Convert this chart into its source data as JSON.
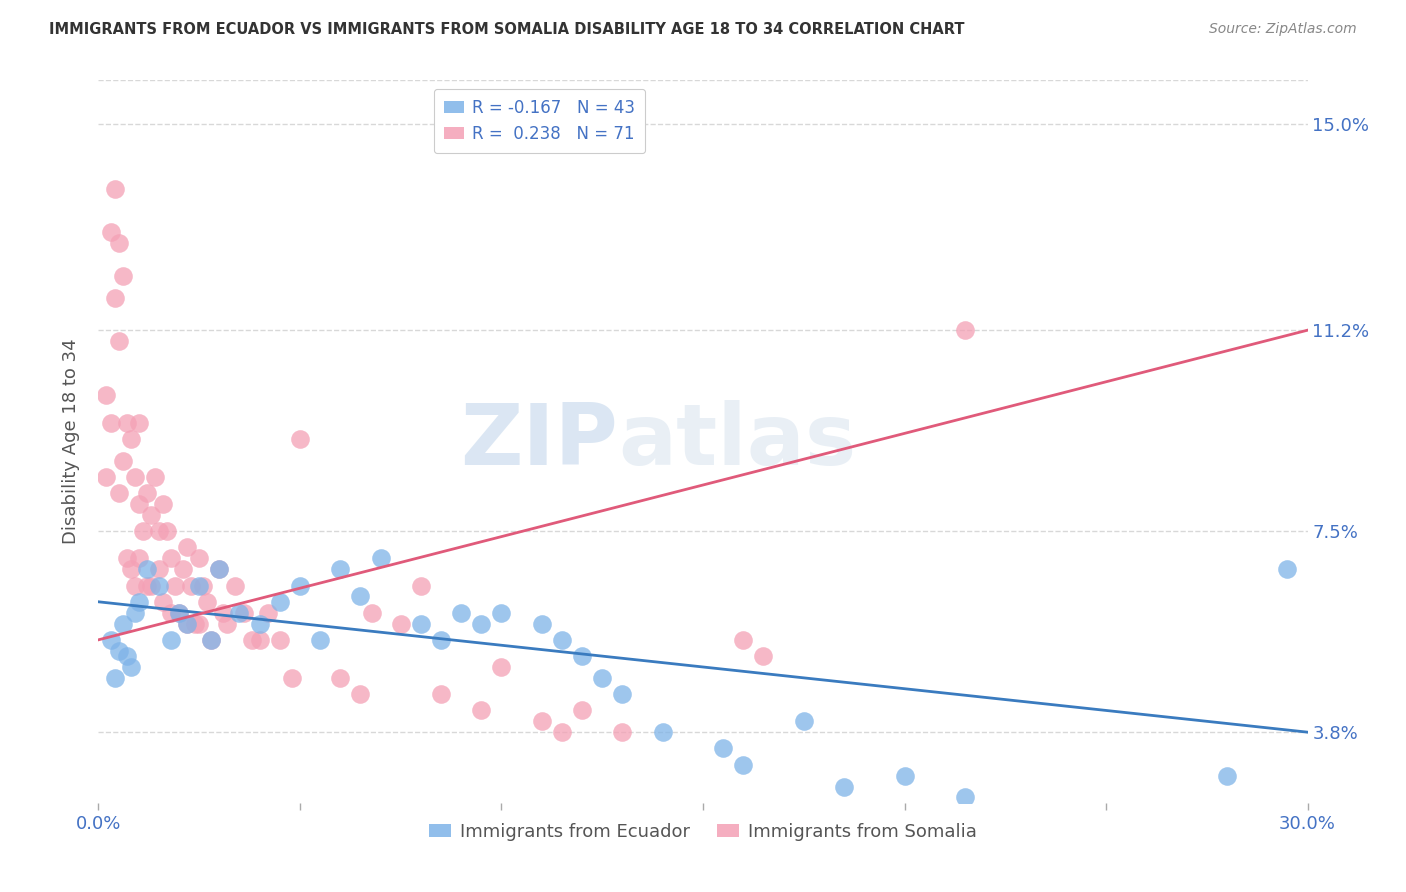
{
  "title": "IMMIGRANTS FROM ECUADOR VS IMMIGRANTS FROM SOMALIA DISABILITY AGE 18 TO 34 CORRELATION CHART",
  "source": "Source: ZipAtlas.com",
  "ylabel": "Disability Age 18 to 34",
  "xlim": [
    0.0,
    0.3
  ],
  "ylim": [
    0.025,
    0.158
  ],
  "xticks": [
    0.0,
    0.05,
    0.1,
    0.15,
    0.2,
    0.25,
    0.3
  ],
  "grid_color": "#d8d8d8",
  "ecuador_color": "#7eb3e8",
  "somalia_color": "#f4a0b5",
  "ecuador_line_color": "#3a7bbf",
  "somalia_line_color": "#e05a7a",
  "ytick_labels_right": [
    "15.0%",
    "11.2%",
    "7.5%",
    "3.8%"
  ],
  "ytick_vals_right": [
    0.15,
    0.112,
    0.075,
    0.038
  ],
  "ecuador_label": "Immigrants from Ecuador",
  "somalia_label": "Immigrants from Somalia",
  "legend_ecuador_label": "R = -0.167   N = 43",
  "legend_somalia_label": "R =  0.238   N = 71",
  "watermark_zip": "ZIP",
  "watermark_atlas": "atlas",
  "ecuador_points_x": [
    0.003,
    0.004,
    0.005,
    0.006,
    0.007,
    0.008,
    0.009,
    0.01,
    0.012,
    0.015,
    0.018,
    0.02,
    0.022,
    0.025,
    0.028,
    0.03,
    0.035,
    0.04,
    0.045,
    0.05,
    0.055,
    0.06,
    0.065,
    0.07,
    0.08,
    0.085,
    0.09,
    0.095,
    0.1,
    0.11,
    0.115,
    0.12,
    0.125,
    0.13,
    0.14,
    0.155,
    0.16,
    0.175,
    0.185,
    0.2,
    0.215,
    0.28,
    0.295
  ],
  "ecuador_points_y": [
    0.055,
    0.048,
    0.053,
    0.058,
    0.052,
    0.05,
    0.06,
    0.062,
    0.068,
    0.065,
    0.055,
    0.06,
    0.058,
    0.065,
    0.055,
    0.068,
    0.06,
    0.058,
    0.062,
    0.065,
    0.055,
    0.068,
    0.063,
    0.07,
    0.058,
    0.055,
    0.06,
    0.058,
    0.06,
    0.058,
    0.055,
    0.052,
    0.048,
    0.045,
    0.038,
    0.035,
    0.032,
    0.04,
    0.028,
    0.03,
    0.026,
    0.03,
    0.068
  ],
  "somalia_points_x": [
    0.002,
    0.002,
    0.003,
    0.003,
    0.004,
    0.004,
    0.005,
    0.005,
    0.005,
    0.006,
    0.006,
    0.007,
    0.007,
    0.008,
    0.008,
    0.009,
    0.009,
    0.01,
    0.01,
    0.01,
    0.011,
    0.012,
    0.012,
    0.013,
    0.013,
    0.014,
    0.015,
    0.015,
    0.016,
    0.016,
    0.017,
    0.018,
    0.018,
    0.019,
    0.02,
    0.021,
    0.022,
    0.022,
    0.023,
    0.024,
    0.025,
    0.025,
    0.026,
    0.027,
    0.028,
    0.03,
    0.031,
    0.032,
    0.034,
    0.036,
    0.038,
    0.04,
    0.042,
    0.045,
    0.048,
    0.05,
    0.06,
    0.065,
    0.068,
    0.075,
    0.08,
    0.085,
    0.095,
    0.1,
    0.11,
    0.115,
    0.12,
    0.13,
    0.16,
    0.165,
    0.215
  ],
  "somalia_points_y": [
    0.1,
    0.085,
    0.13,
    0.095,
    0.138,
    0.118,
    0.128,
    0.11,
    0.082,
    0.122,
    0.088,
    0.095,
    0.07,
    0.092,
    0.068,
    0.085,
    0.065,
    0.095,
    0.08,
    0.07,
    0.075,
    0.082,
    0.065,
    0.078,
    0.065,
    0.085,
    0.075,
    0.068,
    0.08,
    0.062,
    0.075,
    0.07,
    0.06,
    0.065,
    0.06,
    0.068,
    0.072,
    0.058,
    0.065,
    0.058,
    0.07,
    0.058,
    0.065,
    0.062,
    0.055,
    0.068,
    0.06,
    0.058,
    0.065,
    0.06,
    0.055,
    0.055,
    0.06,
    0.055,
    0.048,
    0.092,
    0.048,
    0.045,
    0.06,
    0.058,
    0.065,
    0.045,
    0.042,
    0.05,
    0.04,
    0.038,
    0.042,
    0.038,
    0.055,
    0.052,
    0.112
  ]
}
